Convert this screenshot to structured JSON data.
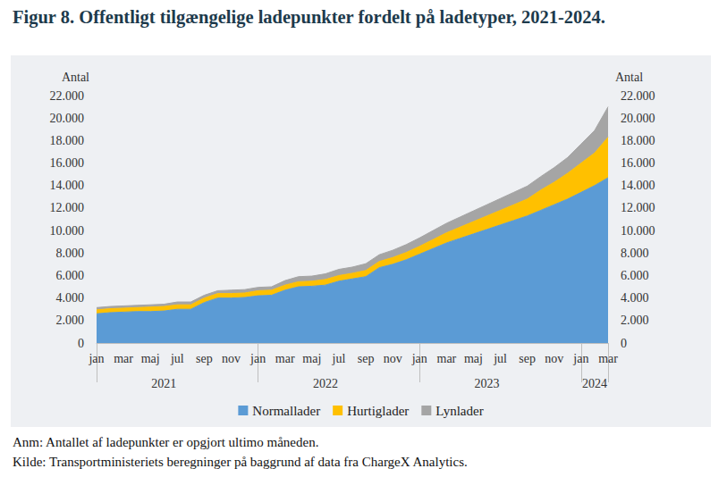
{
  "chart_data": {
    "type": "area",
    "title": "Figur 8. Offentligt tilgængelige ladepunkter fordelt på ladetyper, 2021-2024.",
    "annotations": [
      "Anm: Antallet af ladepunkter er opgjort ultimo måneden.",
      "Kilde: Transportministeriets beregninger på baggrund af data fra ChargeX Analytics."
    ],
    "ylabel": "Antal",
    "y2label": "Antal",
    "categories": [
      "jan",
      null,
      "mar",
      null,
      "maj",
      null,
      "jul",
      null,
      "sep",
      null,
      "nov",
      null,
      "jan",
      null,
      "mar",
      null,
      "maj",
      null,
      "jul",
      null,
      "sep",
      null,
      "nov",
      null,
      "jan",
      null,
      "mar",
      null,
      "maj",
      null,
      "jul",
      null,
      "sep",
      null,
      "nov",
      null,
      "jan",
      null,
      "mar"
    ],
    "groups": [
      {
        "label": "2021",
        "size": 12
      },
      {
        "label": "2022",
        "size": 12
      },
      {
        "label": "2023",
        "size": 12
      },
      {
        "label": "2024",
        "size": 3
      }
    ],
    "stacked": true,
    "grid": false,
    "legend": "bottom",
    "series": [
      {
        "name": "Normallader",
        "color": "#5b9bd5",
        "values": [
          2600,
          2700,
          2750,
          2800,
          2800,
          2850,
          3000,
          3000,
          3600,
          4000,
          4000,
          4050,
          4200,
          4250,
          4700,
          5000,
          5050,
          5150,
          5500,
          5700,
          5900,
          6700,
          7000,
          7400,
          7900,
          8400,
          8900,
          9300,
          9700,
          10100,
          10500,
          10900,
          11300,
          11800,
          12300,
          12800,
          13400,
          14000,
          14700
        ]
      },
      {
        "name": "Hurtiglader",
        "color": "#ffc000",
        "values": [
          350,
          350,
          350,
          350,
          400,
          400,
          400,
          400,
          400,
          400,
          400,
          400,
          450,
          450,
          450,
          450,
          450,
          500,
          500,
          500,
          550,
          550,
          600,
          650,
          700,
          800,
          900,
          1000,
          1100,
          1200,
          1300,
          1400,
          1500,
          1800,
          2000,
          2300,
          2600,
          2900,
          3600
        ]
      },
      {
        "name": "Lynlader",
        "color": "#a5a5a5",
        "values": [
          200,
          200,
          200,
          200,
          200,
          200,
          250,
          250,
          250,
          250,
          300,
          300,
          300,
          300,
          400,
          450,
          450,
          500,
          550,
          550,
          600,
          600,
          650,
          700,
          750,
          800,
          850,
          900,
          950,
          1000,
          1050,
          1100,
          1150,
          1200,
          1300,
          1400,
          1700,
          2000,
          2700
        ]
      }
    ],
    "ylim": [
      0,
      22000
    ],
    "yticks": [
      0,
      {
        "value": 2000,
        "label": "2.000"
      },
      {
        "value": 4000,
        "label": "4.000"
      },
      {
        "value": 6000,
        "label": "6.000"
      },
      {
        "value": 8000,
        "label": "8.000"
      },
      {
        "value": 10000,
        "label": "10.000"
      },
      {
        "value": 12000,
        "label": "12.000"
      },
      {
        "value": 14000,
        "label": "14.000"
      },
      {
        "value": 16000,
        "label": "16.000"
      },
      {
        "value": 18000,
        "label": "18.000"
      },
      {
        "value": 20000,
        "label": "20.000"
      },
      {
        "value": 22000,
        "label": "22.000"
      }
    ],
    "y2lim": [
      0,
      22000
    ],
    "y2ticks": [
      0,
      {
        "value": 2000,
        "label": "2.000"
      },
      {
        "value": 4000,
        "label": "4.000"
      },
      {
        "value": 6000,
        "label": "6.000"
      },
      {
        "value": 8000,
        "label": "8.000"
      },
      {
        "value": 10000,
        "label": "10.000"
      },
      {
        "value": 12000,
        "label": "12.000"
      },
      {
        "value": 14000,
        "label": "14.000"
      },
      {
        "value": 16000,
        "label": "16.000"
      },
      {
        "value": 18000,
        "label": "18.000"
      },
      {
        "value": 20000,
        "label": "20.000"
      },
      {
        "value": 22000,
        "label": "22.000"
      }
    ]
  }
}
